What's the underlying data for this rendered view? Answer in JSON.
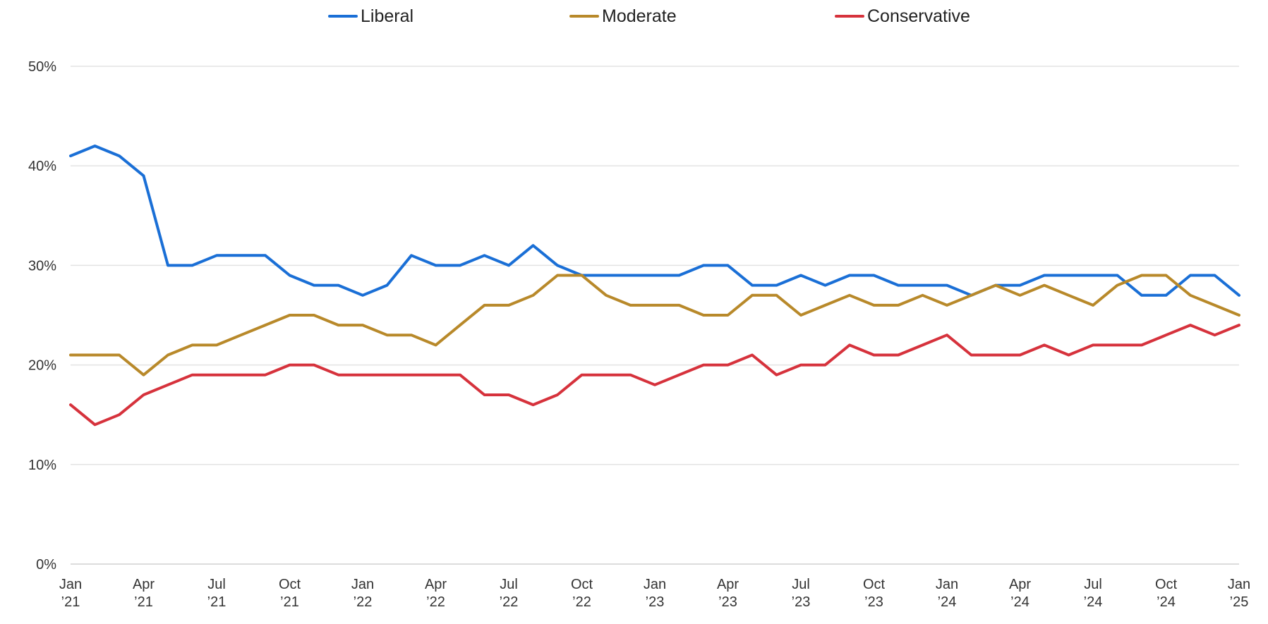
{
  "chart_data": {
    "type": "line",
    "title": "",
    "xlabel": "",
    "ylabel": "",
    "x": [
      "2021-01",
      "2021-02",
      "2021-03",
      "2021-04",
      "2021-05",
      "2021-06",
      "2021-07",
      "2021-08",
      "2021-09",
      "2021-10",
      "2021-11",
      "2021-12",
      "2022-01",
      "2022-02",
      "2022-03",
      "2022-04",
      "2022-05",
      "2022-06",
      "2022-07",
      "2022-08",
      "2022-09",
      "2022-10",
      "2022-11",
      "2022-12",
      "2023-01",
      "2023-02",
      "2023-03",
      "2023-04",
      "2023-05",
      "2023-06",
      "2023-07",
      "2023-08",
      "2023-09",
      "2023-10",
      "2023-11",
      "2023-12",
      "2024-01",
      "2024-02",
      "2024-03",
      "2024-04",
      "2024-05",
      "2024-06",
      "2024-07",
      "2024-08",
      "2024-09",
      "2024-10",
      "2024-11",
      "2024-12",
      "2025-01"
    ],
    "series": [
      {
        "name": "Liberal",
        "color": "#1a6fd6",
        "values": [
          41,
          42,
          41,
          39,
          30,
          30,
          31,
          31,
          31,
          29,
          28,
          28,
          27,
          28,
          31,
          30,
          30,
          31,
          30,
          32,
          30,
          29,
          29,
          29,
          29,
          29,
          30,
          30,
          28,
          28,
          29,
          28,
          29,
          29,
          28,
          28,
          28,
          27,
          28,
          28,
          29,
          29,
          29,
          29,
          27,
          27,
          29,
          29,
          27
        ]
      },
      {
        "name": "Moderate",
        "color": "#b8892a",
        "values": [
          21,
          21,
          21,
          19,
          21,
          22,
          22,
          23,
          24,
          25,
          25,
          24,
          24,
          23,
          23,
          22,
          24,
          26,
          26,
          27,
          29,
          29,
          27,
          26,
          26,
          26,
          25,
          25,
          27,
          27,
          25,
          26,
          27,
          26,
          26,
          27,
          26,
          27,
          28,
          27,
          28,
          27,
          26,
          28,
          29,
          29,
          27,
          26,
          25
        ]
      },
      {
        "name": "Conservative",
        "color": "#d6323c",
        "values": [
          16,
          14,
          15,
          17,
          18,
          19,
          19,
          19,
          19,
          20,
          20,
          19,
          19,
          19,
          19,
          19,
          19,
          17,
          17,
          16,
          17,
          19,
          19,
          19,
          18,
          19,
          20,
          20,
          21,
          19,
          20,
          20,
          22,
          21,
          21,
          22,
          23,
          21,
          21,
          21,
          22,
          21,
          22,
          22,
          22,
          23,
          24,
          23,
          24
        ]
      }
    ],
    "ylim": [
      0,
      50
    ],
    "yticks": [
      0,
      10,
      20,
      30,
      40,
      50
    ],
    "ytick_labels": [
      "0%",
      "10%",
      "20%",
      "30%",
      "40%",
      "50%"
    ],
    "xtick_index": [
      0,
      3,
      6,
      9,
      12,
      15,
      18,
      21,
      24,
      27,
      30,
      33,
      36,
      39,
      42,
      45,
      48
    ],
    "xtick_labels": [
      [
        "Jan",
        "’21"
      ],
      [
        "Apr",
        "’21"
      ],
      [
        "Jul",
        "’21"
      ],
      [
        "Oct",
        "’21"
      ],
      [
        "Jan",
        "’22"
      ],
      [
        "Apr",
        "’22"
      ],
      [
        "Jul",
        "’22"
      ],
      [
        "Oct",
        "’22"
      ],
      [
        "Jan",
        "’23"
      ],
      [
        "Apr",
        "’23"
      ],
      [
        "Jul",
        "’23"
      ],
      [
        "Oct",
        "’23"
      ],
      [
        "Jan",
        "’24"
      ],
      [
        "Apr",
        "’24"
      ],
      [
        "Jul",
        "’24"
      ],
      [
        "Oct",
        "’24"
      ],
      [
        "Jan",
        "’25"
      ]
    ],
    "grid": true,
    "legend_position": "top-center"
  },
  "legend": {
    "items": [
      {
        "label": "Liberal",
        "color": "#1a6fd6"
      },
      {
        "label": "Moderate",
        "color": "#b8892a"
      },
      {
        "label": "Conservative",
        "color": "#d6323c"
      }
    ]
  }
}
